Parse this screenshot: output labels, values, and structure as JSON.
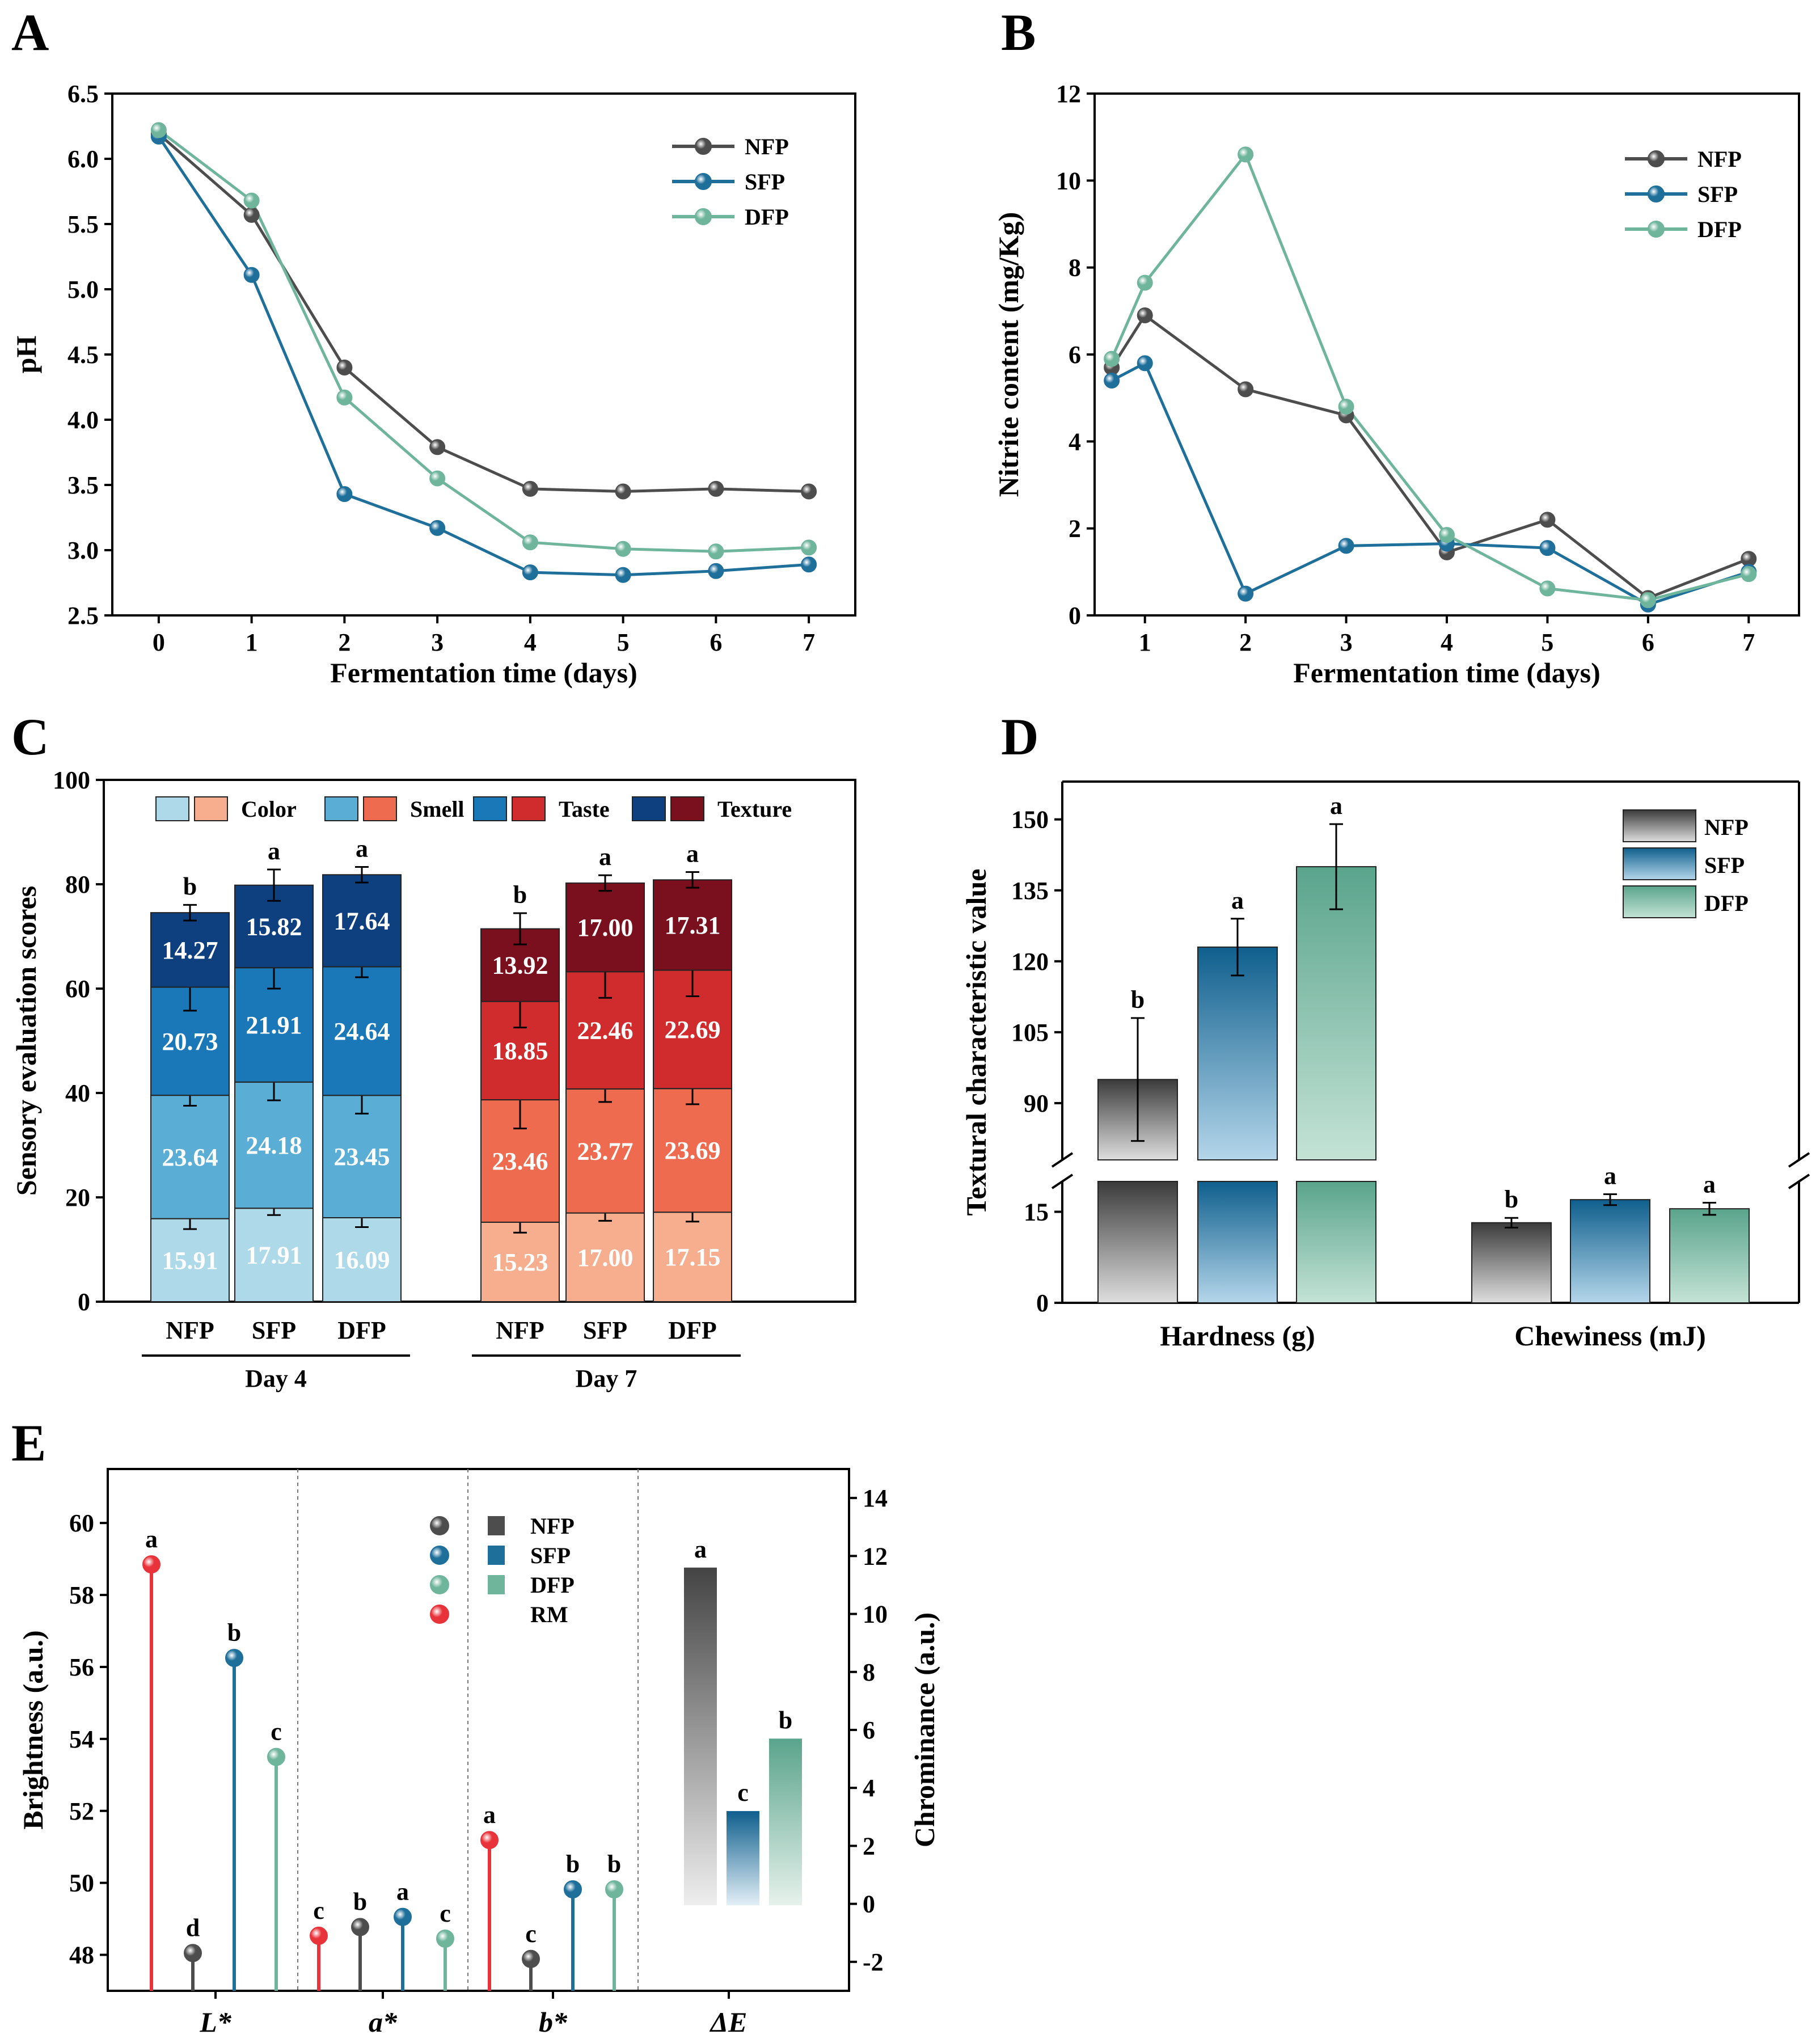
{
  "panels": {
    "A": "A",
    "B": "B",
    "C": "C",
    "D": "D",
    "E": "E"
  },
  "chart_data": [
    {
      "id": "A",
      "type": "line",
      "xlabel": "Fermentation time (days)",
      "ylabel": "pH",
      "x": [
        0,
        1,
        2,
        3,
        4,
        5,
        6,
        7
      ],
      "xlim": [
        -0.5,
        7.5
      ],
      "ylim": [
        2.5,
        6.5
      ],
      "yticks": [
        "2.5",
        "3.0",
        "3.5",
        "4.0",
        "4.5",
        "5.0",
        "5.5",
        "6.0",
        "6.5"
      ],
      "xticks": [
        "0",
        "1",
        "2",
        "3",
        "4",
        "5",
        "6",
        "7"
      ],
      "legend": [
        "NFP",
        "SFP",
        "DFP"
      ],
      "series": [
        {
          "name": "NFP",
          "color": "#4d4d4d",
          "values": [
            6.19,
            5.57,
            4.4,
            3.79,
            3.47,
            3.45,
            3.47,
            3.45
          ]
        },
        {
          "name": "SFP",
          "color": "#1f6f9b",
          "values": [
            6.17,
            5.11,
            3.43,
            3.17,
            2.83,
            2.81,
            2.84,
            2.89
          ]
        },
        {
          "name": "DFP",
          "color": "#6fb59c",
          "values": [
            6.22,
            5.68,
            4.17,
            3.55,
            3.06,
            3.01,
            2.99,
            3.02
          ]
        }
      ]
    },
    {
      "id": "B",
      "type": "line",
      "xlabel": "Fermentation time (days)",
      "ylabel": "Nitrite content (mg/Kg)",
      "xlim": [
        0.5,
        7.5
      ],
      "ylim": [
        0,
        12
      ],
      "yticks": [
        "0",
        "2",
        "4",
        "6",
        "8",
        "10",
        "12"
      ],
      "xticks": [
        "1",
        "2",
        "3",
        "4",
        "5",
        "6",
        "7"
      ],
      "legend": [
        "NFP",
        "SFP",
        "DFP"
      ],
      "series": [
        {
          "name": "NFP",
          "color": "#4d4d4d",
          "x": [
            0.67,
            1,
            2,
            3,
            4,
            5,
            6,
            7
          ],
          "values": [
            5.7,
            6.9,
            5.2,
            4.6,
            1.45,
            2.2,
            0.4,
            1.3
          ]
        },
        {
          "name": "SFP",
          "color": "#1f6f9b",
          "x": [
            0.67,
            1,
            2,
            3,
            4,
            5,
            6,
            7
          ],
          "values": [
            5.4,
            5.8,
            0.5,
            1.6,
            1.65,
            1.55,
            0.25,
            1.0
          ]
        },
        {
          "name": "DFP",
          "color": "#6fb59c",
          "x": [
            0.67,
            1,
            2,
            3,
            4,
            5,
            6,
            7
          ],
          "values": [
            5.9,
            7.65,
            10.6,
            4.8,
            1.85,
            0.62,
            0.35,
            0.95
          ]
        }
      ]
    },
    {
      "id": "C",
      "type": "bar",
      "stacked": true,
      "ylabel": "Sensory evaluation scores",
      "ylim": [
        0,
        100
      ],
      "yticks": [
        "0",
        "20",
        "40",
        "60",
        "80",
        "100"
      ],
      "legend": [
        "Color",
        "Smell",
        "Taste",
        "Texture"
      ],
      "groups": [
        {
          "label": "Day 4",
          "categories": [
            "NFP",
            "SFP",
            "DFP"
          ],
          "colors": [
            "#aed9e8",
            "#5aaed6",
            "#1a78b8",
            "#0e3f7e"
          ],
          "layers": [
            [
              15.91,
              23.64,
              20.73,
              14.27
            ],
            [
              17.91,
              24.18,
              21.91,
              15.82
            ],
            [
              16.09,
              23.45,
              24.64,
              17.64
            ]
          ],
          "layer_text": [
            [
              "15.91",
              "23.64",
              "20.73",
              "14.27"
            ],
            [
              "17.91",
              "24.18",
              "21.91",
              "15.82"
            ],
            [
              "16.09",
              "23.45",
              "24.64",
              "17.64"
            ]
          ],
          "errors": [
            [
              2.0,
              2.0,
              4.5,
              1.5
            ],
            [
              1.3,
              3.5,
              4.0,
              3.0
            ],
            [
              1.8,
              3.5,
              2.0,
              1.5
            ]
          ],
          "sig": [
            "b",
            "a",
            "a"
          ]
        },
        {
          "label": "Day 7",
          "categories": [
            "NFP",
            "SFP",
            "DFP"
          ],
          "colors": [
            "#f6ae8e",
            "#ef6b50",
            "#d02c2e",
            "#7a0f1e"
          ],
          "layers": [
            [
              15.23,
              23.46,
              18.85,
              13.92
            ],
            [
              17.0,
              23.77,
              22.46,
              17.0
            ],
            [
              17.15,
              23.69,
              22.69,
              17.31
            ]
          ],
          "layer_text": [
            [
              "15.23",
              "23.46",
              "18.85",
              "13.92"
            ],
            [
              "17.00",
              "23.77",
              "22.46",
              "17.00"
            ],
            [
              "17.15",
              "23.69",
              "22.69",
              "17.31"
            ]
          ],
          "errors": [
            [
              2.0,
              5.5,
              5.0,
              3.0
            ],
            [
              1.5,
              2.5,
              5.0,
              1.5
            ],
            [
              1.8,
              3.0,
              5.0,
              1.5
            ]
          ],
          "sig": [
            "b",
            "a",
            "a"
          ]
        }
      ]
    },
    {
      "id": "D",
      "type": "bar",
      "ylabel": "Textural characteristic value",
      "broken_axis": {
        "lower": [
          0,
          20
        ],
        "upper": [
          78,
          158
        ]
      },
      "yticks_lower": [
        "0",
        "15"
      ],
      "yticks_upper": [
        "90",
        "105",
        "120",
        "135",
        "150"
      ],
      "categories": [
        "Hardness (g)",
        "Chewiness (mJ)"
      ],
      "legend": [
        "NFP",
        "SFP",
        "DFP"
      ],
      "series": [
        {
          "name": "NFP",
          "color": "#4d4d4d",
          "values": [
            95.0,
            13.2
          ],
          "errors": [
            13.0,
            0.8
          ],
          "sig": [
            "b",
            "b"
          ]
        },
        {
          "name": "SFP",
          "color": "#1f6f9b",
          "values": [
            123.0,
            17.0
          ],
          "errors": [
            6.0,
            0.9
          ],
          "sig": [
            "a",
            "a"
          ]
        },
        {
          "name": "DFP",
          "color": "#6fb59c",
          "values": [
            140.0,
            15.5
          ],
          "errors": [
            9.0,
            1.0
          ],
          "sig": [
            "a",
            "a"
          ]
        }
      ]
    },
    {
      "id": "E",
      "type": "lollipop+bar",
      "ylabel_left": "Brightness (a.u.)",
      "ylabel_right": "Chrominance (a.u.)",
      "ylim_left": [
        47.0,
        61.5
      ],
      "ylim_right": [
        -3.0,
        15.0
      ],
      "yticks_left": [
        "48",
        "50",
        "52",
        "54",
        "56",
        "58",
        "60"
      ],
      "yticks_right": [
        "-2",
        "0",
        "2",
        "4",
        "6",
        "8",
        "10",
        "12",
        "14"
      ],
      "categories": [
        "L*",
        "a*",
        "b*",
        "ΔE"
      ],
      "legend": [
        "NFP",
        "SFP",
        "DFP",
        "RM"
      ],
      "colors": {
        "NFP": "#4d4d4d",
        "SFP": "#1f6f9b",
        "DFP": "#6fb59c",
        "RM": "#e8333a"
      },
      "L_star": [
        {
          "name": "RM",
          "value": 58.85,
          "sig": "a"
        },
        {
          "name": "NFP",
          "value": 48.05,
          "sig": "d"
        },
        {
          "name": "SFP",
          "value": 56.25,
          "sig": "b"
        },
        {
          "name": "DFP",
          "value": 53.5,
          "sig": "c"
        }
      ],
      "a_star": [
        {
          "name": "RM",
          "value": -1.1,
          "sig": "c"
        },
        {
          "name": "NFP",
          "value": -0.8,
          "sig": "b"
        },
        {
          "name": "SFP",
          "value": -0.45,
          "sig": "a"
        },
        {
          "name": "DFP",
          "value": -1.2,
          "sig": "c"
        }
      ],
      "b_star": [
        {
          "name": "RM",
          "value": 2.2,
          "sig": "a"
        },
        {
          "name": "NFP",
          "value": -1.9,
          "sig": "c"
        },
        {
          "name": "SFP",
          "value": 0.5,
          "sig": "b"
        },
        {
          "name": "DFP",
          "value": 0.5,
          "sig": "b"
        }
      ],
      "delta_E": [
        {
          "name": "NFP",
          "value": 11.6,
          "sig": "a"
        },
        {
          "name": "SFP",
          "value": 3.2,
          "sig": "c"
        },
        {
          "name": "DFP",
          "value": 5.7,
          "sig": "b"
        }
      ]
    }
  ]
}
